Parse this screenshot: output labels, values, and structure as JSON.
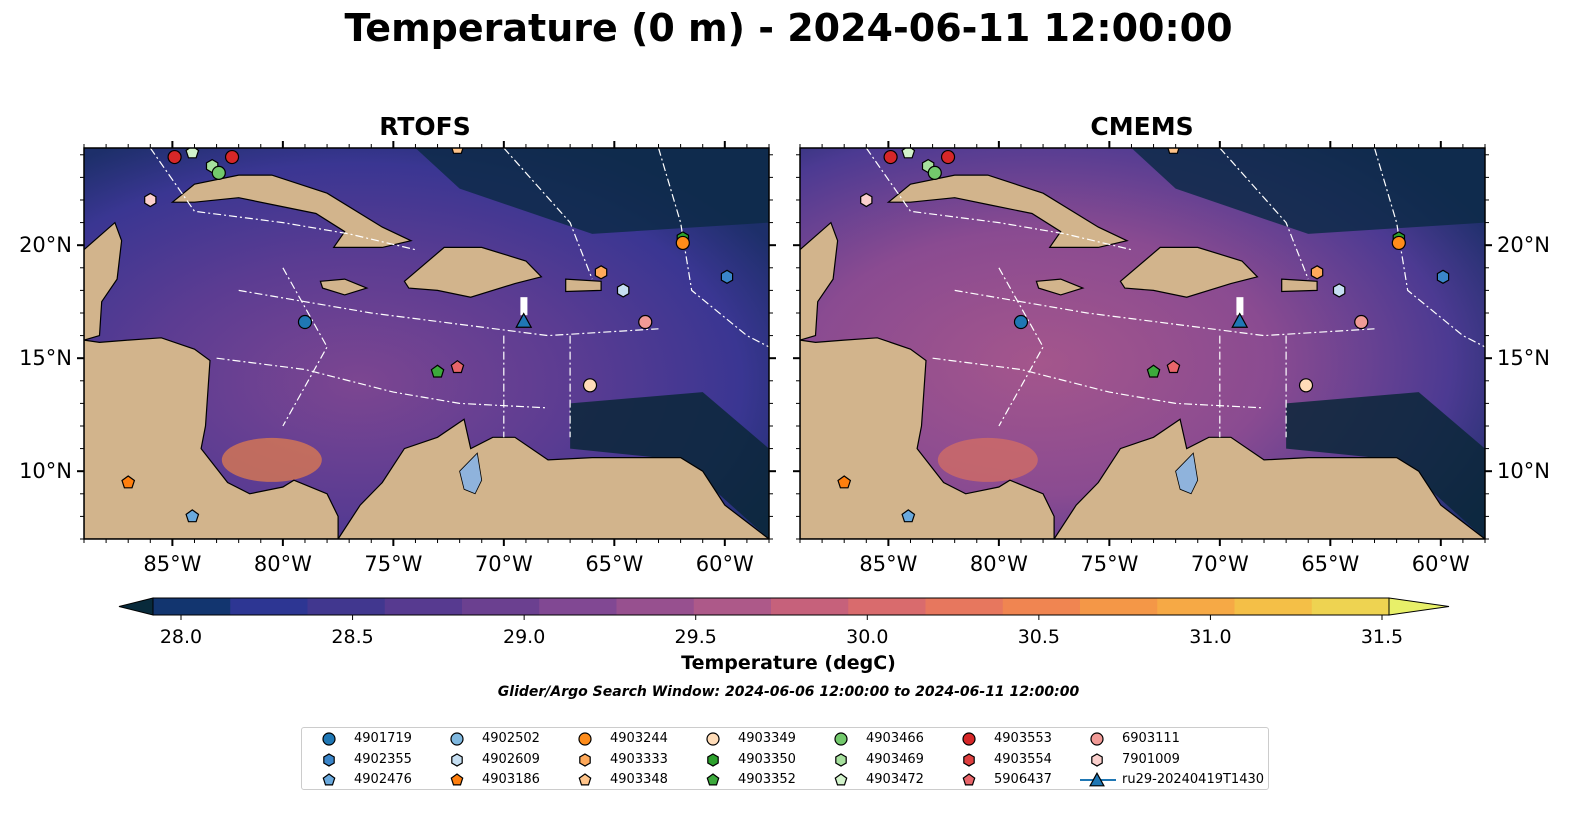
{
  "title": "Temperature (0 m) - 2024-06-11 12:00:00",
  "panels": [
    {
      "title": "RTOFS"
    },
    {
      "title": "CMEMS"
    }
  ],
  "axes": {
    "lon_ticks": [
      "85°W",
      "80°W",
      "75°W",
      "70°W",
      "65°W",
      "60°W"
    ],
    "lat_ticks": [
      "20°N",
      "15°N",
      "10°N"
    ],
    "lon_range": [
      -89,
      -58
    ],
    "lat_range": [
      7,
      24.3
    ]
  },
  "colorbar": {
    "label": "Temperature (degC)",
    "ticks": [
      "28.0",
      "28.5",
      "29.0",
      "29.5",
      "30.0",
      "30.5",
      "31.0",
      "31.5"
    ],
    "range": [
      28.0,
      31.75
    ],
    "extend": "both",
    "colors": [
      "#082a3b",
      "#12356f",
      "#2d3693",
      "#41378f",
      "#573a90",
      "#6b4090",
      "#814893",
      "#97508f",
      "#ad5989",
      "#c6617b",
      "#d96b6d",
      "#e7775e",
      "#f08551",
      "#f49747",
      "#f6a945",
      "#f4bf47",
      "#eed351",
      "#e8f069"
    ]
  },
  "search_window": "Glider/Argo Search Window: 2024-06-06 12:00:00 to 2024-06-11 12:00:00",
  "land_color": "#d2b48c",
  "lake_color": "#8fb3dc",
  "legend": [
    {
      "id": "4901719",
      "marker": "circle",
      "color": "#1f77b4"
    },
    {
      "id": "4902355",
      "marker": "hexagon",
      "color": "#3a85c9"
    },
    {
      "id": "4902476",
      "marker": "pentagon",
      "color": "#6aa9dd"
    },
    {
      "id": "4902502",
      "marker": "circle",
      "color": "#7fb8e0"
    },
    {
      "id": "4902609",
      "marker": "hexagon",
      "color": "#c6dff2"
    },
    {
      "id": "4903186",
      "marker": "pentagon",
      "color": "#ff7f0e"
    },
    {
      "id": "4903244",
      "marker": "circle",
      "color": "#ff8c1a"
    },
    {
      "id": "4903333",
      "marker": "hexagon",
      "color": "#ffa95a"
    },
    {
      "id": "4903348",
      "marker": "pentagon",
      "color": "#ffc48a"
    },
    {
      "id": "4903349",
      "marker": "circle",
      "color": "#ffdcb8"
    },
    {
      "id": "4903350",
      "marker": "hexagon",
      "color": "#2ca02c"
    },
    {
      "id": "4903352",
      "marker": "pentagon",
      "color": "#3caa3c"
    },
    {
      "id": "4903466",
      "marker": "circle",
      "color": "#73c96c"
    },
    {
      "id": "4903469",
      "marker": "hexagon",
      "color": "#a6e09d"
    },
    {
      "id": "4903472",
      "marker": "pentagon",
      "color": "#d2f3cb"
    },
    {
      "id": "4903553",
      "marker": "circle",
      "color": "#d62728"
    },
    {
      "id": "4903554",
      "marker": "hexagon",
      "color": "#de3f3f"
    },
    {
      "id": "5906437",
      "marker": "pentagon",
      "color": "#e8656a"
    },
    {
      "id": "6903111",
      "marker": "circle",
      "color": "#f19a96"
    },
    {
      "id": "7901009",
      "marker": "hexagon",
      "color": "#fbd0cd"
    },
    {
      "id": "ru29-20240419T1430",
      "marker": "triangle-line",
      "color": "#1f77b4"
    }
  ],
  "observations": [
    {
      "id": "4903553",
      "lon": -84.9,
      "lat": 23.9
    },
    {
      "id": "4903472",
      "lon": -84.1,
      "lat": 24.1
    },
    {
      "id": "4903553",
      "lon": -82.3,
      "lat": 23.9
    },
    {
      "id": "4903469",
      "lon": -83.2,
      "lat": 23.5
    },
    {
      "id": "4903466",
      "lon": -82.9,
      "lat": 23.2
    },
    {
      "id": "7901009",
      "lon": -86.0,
      "lat": 22.0
    },
    {
      "id": "4903348",
      "lon": -72.1,
      "lat": 24.3
    },
    {
      "id": "4903350",
      "lon": -61.9,
      "lat": 20.3
    },
    {
      "id": "4903244",
      "lon": -61.9,
      "lat": 20.1
    },
    {
      "id": "4903333",
      "lon": -65.6,
      "lat": 18.8
    },
    {
      "id": "4902355",
      "lon": -59.9,
      "lat": 18.6
    },
    {
      "id": "4902609",
      "lon": -64.6,
      "lat": 18.0
    },
    {
      "id": "6903111",
      "lon": -63.6,
      "lat": 16.6
    },
    {
      "id": "4901719",
      "lon": -79.0,
      "lat": 16.6
    },
    {
      "id": "4903352",
      "lon": -73.0,
      "lat": 14.4
    },
    {
      "id": "5906437",
      "lon": -72.1,
      "lat": 14.6
    },
    {
      "id": "4903349",
      "lon": -66.1,
      "lat": 13.8
    },
    {
      "id": "4903186",
      "lon": -87.0,
      "lat": 9.5
    },
    {
      "id": "4902476",
      "lon": -84.1,
      "lat": 8.0
    },
    {
      "id": "ru29-20240419T1430",
      "lon": -69.1,
      "lat": 16.6
    }
  ]
}
